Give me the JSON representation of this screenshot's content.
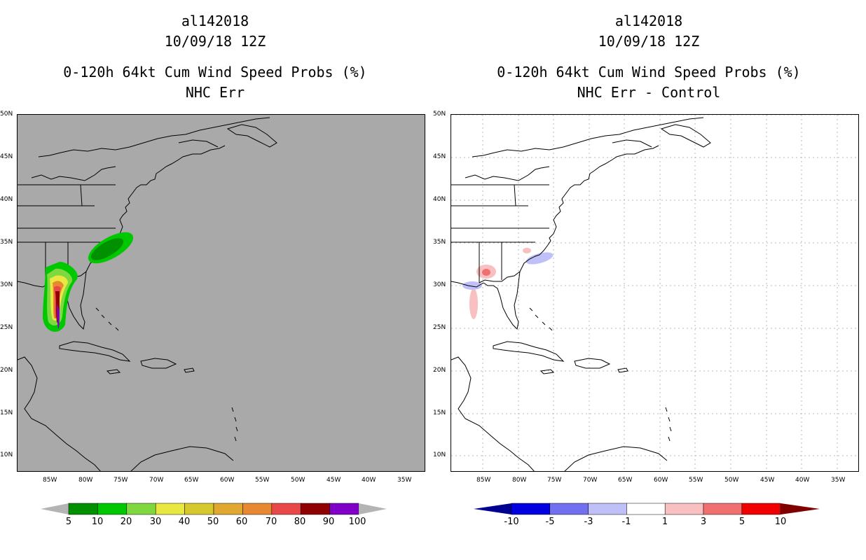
{
  "left_panel": {
    "title_line1": "al142018",
    "title_line2": "10/09/18 12Z",
    "title_line3": "0-120h 64kt Cum Wind Speed Probs (%)",
    "title_line4": "NHC Err",
    "colorbar": {
      "labels": [
        "5",
        "10",
        "20",
        "30",
        "40",
        "50",
        "60",
        "70",
        "80",
        "90",
        "100"
      ],
      "colors": [
        "#009000",
        "#00c800",
        "#80d840",
        "#e8e840",
        "#d8c830",
        "#e0a830",
        "#e88830",
        "#e84848",
        "#900000",
        "#8000c8"
      ],
      "under_color": "#b4b4b4",
      "over_color": "#b4b4b4"
    }
  },
  "right_panel": {
    "title_line1": "al142018",
    "title_line2": "10/09/18 12Z",
    "title_line3": "0-120h 64kt Cum Wind Speed Probs (%)",
    "title_line4": "NHC Err - Control",
    "colorbar": {
      "labels": [
        "-10",
        "-5",
        "-3",
        "-1",
        "1",
        "3",
        "5",
        "10"
      ],
      "colors": [
        "#0000e0",
        "#7070f0",
        "#c0c0f8",
        "#ffffff",
        "#f8c0c0",
        "#f07070",
        "#f00000"
      ],
      "under_color": "#000090",
      "over_color": "#800000"
    }
  },
  "axes": {
    "lat_labels": [
      "50N",
      "45N",
      "40N",
      "35N",
      "30N",
      "25N",
      "20N",
      "15N",
      "10N"
    ],
    "lon_labels": [
      "85W",
      "80W",
      "75W",
      "70W",
      "65W",
      "60W",
      "55W",
      "50W",
      "45W",
      "40W",
      "35W"
    ]
  },
  "colors": {
    "ocean_left": "#a9a9a9",
    "ocean_right": "#ffffff",
    "coast": "#000000"
  }
}
